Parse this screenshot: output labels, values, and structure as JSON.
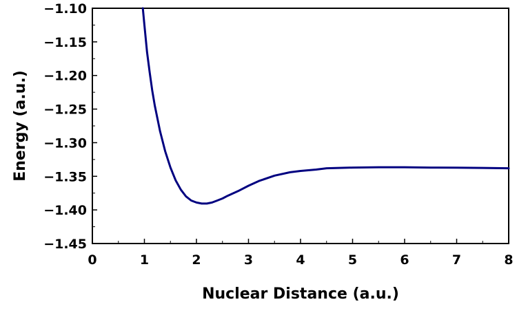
{
  "chart_data": {
    "type": "line",
    "xlabel": "Nuclear Distance (a.u.)",
    "ylabel": "Energy (a.u.)",
    "xlim": [
      0,
      8
    ],
    "ylim": [
      -1.45,
      -1.1
    ],
    "x_ticks": [
      0,
      1,
      2,
      3,
      4,
      5,
      6,
      7,
      8
    ],
    "x_tick_labels": [
      "0",
      "1",
      "2",
      "3",
      "4",
      "5",
      "6",
      "7",
      "8"
    ],
    "y_ticks": [
      -1.45,
      -1.4,
      -1.35,
      -1.3,
      -1.25,
      -1.2,
      -1.15,
      -1.1
    ],
    "y_tick_labels": [
      "−1.45",
      "−1.40",
      "−1.35",
      "−1.30",
      "−1.25",
      "−1.20",
      "−1.15",
      "−1.10"
    ],
    "grid": false,
    "colors": {
      "line": "#000080",
      "axis": "#000000"
    },
    "series": [
      {
        "x": [
          0.97,
          1.0,
          1.05,
          1.1,
          1.15,
          1.2,
          1.3,
          1.4,
          1.5,
          1.6,
          1.7,
          1.8,
          1.9,
          2.0,
          2.1,
          2.2,
          2.3,
          2.4,
          2.5,
          2.6,
          2.8,
          3.0,
          3.2,
          3.5,
          3.8,
          4.0,
          4.3,
          4.5,
          5.0,
          5.5,
          6.0,
          6.5,
          7.0,
          7.5,
          8.0
        ],
        "y": [
          -1.1,
          -1.125,
          -1.165,
          -1.195,
          -1.222,
          -1.245,
          -1.283,
          -1.313,
          -1.337,
          -1.356,
          -1.37,
          -1.38,
          -1.386,
          -1.389,
          -1.3905,
          -1.3905,
          -1.389,
          -1.386,
          -1.383,
          -1.379,
          -1.372,
          -1.364,
          -1.357,
          -1.349,
          -1.344,
          -1.342,
          -1.34,
          -1.338,
          -1.337,
          -1.3365,
          -1.3365,
          -1.337,
          -1.3372,
          -1.3375,
          -1.338
        ]
      }
    ]
  }
}
